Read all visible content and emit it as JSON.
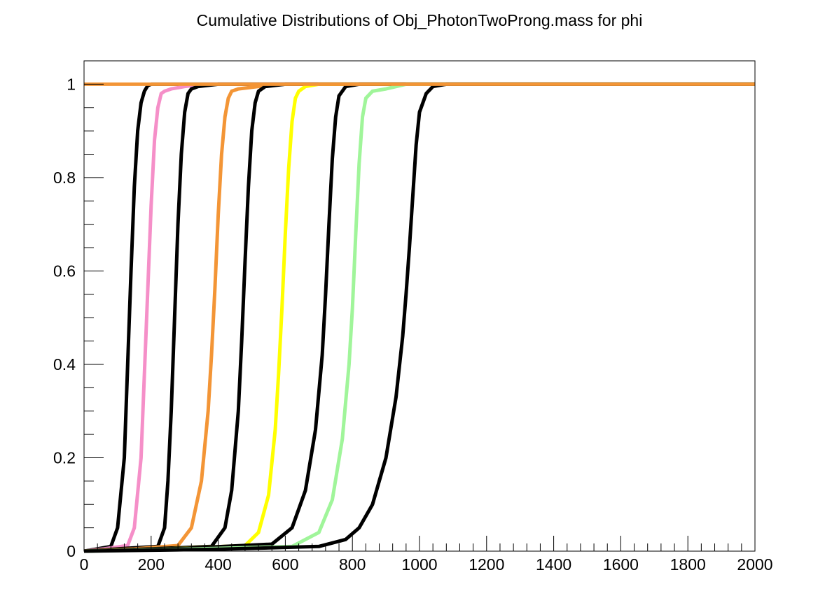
{
  "chart_data": {
    "type": "line",
    "title": "Cumulative Distributions of Obj_PhotonTwoProng.mass for phi",
    "xlabel": "",
    "ylabel": "",
    "xlim": [
      0,
      2000
    ],
    "ylim": [
      0,
      1.05
    ],
    "x_major_ticks": [
      0,
      200,
      400,
      600,
      800,
      1000,
      1200,
      1400,
      1600,
      1800,
      2000
    ],
    "x_tick_labels": [
      "0",
      "200",
      "400",
      "600",
      "800",
      "1000",
      "1200",
      "1400",
      "1600",
      "1800",
      "2000"
    ],
    "y_major_ticks": [
      0,
      0.2,
      0.4,
      0.6,
      0.8,
      1
    ],
    "y_tick_labels": [
      "0",
      "0.2",
      "0.4",
      "0.6",
      "0.8",
      "1"
    ],
    "grid": false,
    "legend": "none",
    "series": [
      {
        "color": "#000000",
        "x": [
          0,
          40,
          80,
          100,
          120,
          130,
          140,
          150,
          160,
          170,
          180,
          190,
          200,
          240,
          2000
        ],
        "y": [
          0,
          0.005,
          0.01,
          0.05,
          0.2,
          0.4,
          0.6,
          0.78,
          0.9,
          0.96,
          0.985,
          0.997,
          1,
          1,
          1
        ]
      },
      {
        "color": "#f58fc8",
        "x": [
          0,
          60,
          130,
          150,
          170,
          180,
          190,
          200,
          210,
          220,
          230,
          240,
          260,
          300,
          360,
          2000
        ],
        "y": [
          0,
          0.005,
          0.012,
          0.05,
          0.2,
          0.38,
          0.56,
          0.74,
          0.88,
          0.95,
          0.98,
          0.985,
          0.99,
          0.995,
          1,
          1
        ]
      },
      {
        "color": "#000000",
        "x": [
          0,
          100,
          220,
          240,
          250,
          260,
          270,
          280,
          290,
          300,
          310,
          320,
          340,
          400,
          2000
        ],
        "y": [
          0,
          0.005,
          0.01,
          0.05,
          0.15,
          0.3,
          0.5,
          0.7,
          0.85,
          0.94,
          0.98,
          0.99,
          0.995,
          1,
          1
        ]
      },
      {
        "color": "#f39536",
        "x": [
          0,
          150,
          280,
          320,
          350,
          370,
          380,
          390,
          400,
          410,
          420,
          430,
          440,
          460,
          520,
          600,
          2000
        ],
        "y": [
          0,
          0.005,
          0.012,
          0.05,
          0.15,
          0.3,
          0.42,
          0.56,
          0.72,
          0.85,
          0.93,
          0.97,
          0.985,
          0.99,
          0.995,
          1,
          1
        ]
      },
      {
        "color": "#000000",
        "x": [
          0,
          200,
          380,
          420,
          440,
          460,
          470,
          480,
          490,
          500,
          510,
          520,
          540,
          600,
          2000
        ],
        "y": [
          0,
          0.005,
          0.01,
          0.05,
          0.13,
          0.3,
          0.45,
          0.62,
          0.78,
          0.9,
          0.96,
          0.985,
          0.995,
          1,
          1
        ]
      },
      {
        "color": "#ffff00",
        "x": [
          0,
          250,
          480,
          520,
          550,
          570,
          580,
          590,
          600,
          610,
          620,
          630,
          640,
          660,
          700,
          2000
        ],
        "y": [
          0,
          0.005,
          0.012,
          0.04,
          0.12,
          0.26,
          0.38,
          0.52,
          0.68,
          0.82,
          0.92,
          0.97,
          0.985,
          0.995,
          1,
          1
        ]
      },
      {
        "color": "#000000",
        "x": [
          0,
          300,
          560,
          620,
          660,
          690,
          710,
          720,
          730,
          740,
          750,
          760,
          780,
          820,
          2000
        ],
        "y": [
          0,
          0.006,
          0.015,
          0.05,
          0.13,
          0.26,
          0.42,
          0.55,
          0.7,
          0.84,
          0.93,
          0.975,
          0.995,
          1,
          1
        ]
      },
      {
        "color": "#a0f59a",
        "x": [
          0,
          300,
          620,
          700,
          740,
          770,
          790,
          800,
          810,
          820,
          830,
          840,
          860,
          900,
          960,
          2000
        ],
        "y": [
          0,
          0.004,
          0.01,
          0.04,
          0.11,
          0.24,
          0.4,
          0.52,
          0.68,
          0.83,
          0.93,
          0.97,
          0.985,
          0.99,
          1,
          1
        ]
      },
      {
        "color": "#000000",
        "x": [
          0,
          400,
          700,
          780,
          820,
          860,
          900,
          930,
          950,
          960,
          970,
          980,
          990,
          1000,
          1020,
          1040,
          1080,
          2000
        ],
        "y": [
          0,
          0.004,
          0.01,
          0.025,
          0.05,
          0.1,
          0.2,
          0.33,
          0.46,
          0.55,
          0.65,
          0.76,
          0.87,
          0.94,
          0.98,
          0.995,
          1,
          1
        ]
      },
      {
        "color": "#f39536",
        "x": [
          0,
          900,
          2000
        ],
        "y": [
          1,
          1,
          1
        ],
        "note_hidden": ""
      }
    ]
  }
}
